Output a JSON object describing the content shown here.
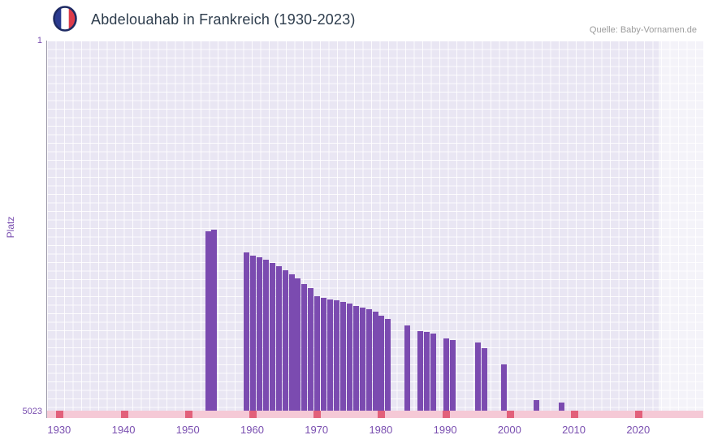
{
  "header": {
    "title": "Abdelouahab in Frankreich (1930-2023)",
    "source": "Quelle: Baby-Vornamen.de",
    "flag_colors": [
      "#2a3a90",
      "#ffffff",
      "#dd3b4a"
    ],
    "flag_ring_color": "#1e2a63"
  },
  "chart_data": {
    "type": "bar",
    "title": "Abdelouahab in Frankreich (1930-2023)",
    "xlabel": "",
    "ylabel": "Platz",
    "y_axis": {
      "top_label": "1",
      "bottom_label": "5023",
      "min": 1,
      "max": 5023,
      "inverted": true
    },
    "x_ticks": [
      1930,
      1940,
      1950,
      1960,
      1970,
      1980,
      1990,
      2000,
      2010,
      2020
    ],
    "x_range": [
      1928,
      2030
    ],
    "grid": true,
    "legend": "none",
    "colors": {
      "accent": "#7a4fb0",
      "bar": "#7b4bb0",
      "plot_bg": "#e9e6f3",
      "strip": "#f5c9d6",
      "mark": "#e2607a"
    },
    "points": [
      {
        "year": 1953,
        "rank": 2590
      },
      {
        "year": 1954,
        "rank": 2565
      },
      {
        "year": 1959,
        "rank": 2870
      },
      {
        "year": 1960,
        "rank": 2920
      },
      {
        "year": 1961,
        "rank": 2945
      },
      {
        "year": 1962,
        "rank": 2975
      },
      {
        "year": 1963,
        "rank": 3020
      },
      {
        "year": 1964,
        "rank": 3060
      },
      {
        "year": 1965,
        "rank": 3120
      },
      {
        "year": 1966,
        "rank": 3170
      },
      {
        "year": 1967,
        "rank": 3230
      },
      {
        "year": 1968,
        "rank": 3300
      },
      {
        "year": 1969,
        "rank": 3365
      },
      {
        "year": 1970,
        "rank": 3470
      },
      {
        "year": 1971,
        "rank": 3495
      },
      {
        "year": 1972,
        "rank": 3515
      },
      {
        "year": 1973,
        "rank": 3530
      },
      {
        "year": 1974,
        "rank": 3550
      },
      {
        "year": 1975,
        "rank": 3570
      },
      {
        "year": 1976,
        "rank": 3600
      },
      {
        "year": 1977,
        "rank": 3625
      },
      {
        "year": 1978,
        "rank": 3650
      },
      {
        "year": 1979,
        "rank": 3680
      },
      {
        "year": 1980,
        "rank": 3735
      },
      {
        "year": 1981,
        "rank": 3780
      },
      {
        "year": 1984,
        "rank": 3865
      },
      {
        "year": 1986,
        "rank": 3940
      },
      {
        "year": 1987,
        "rank": 3955
      },
      {
        "year": 1988,
        "rank": 3975
      },
      {
        "year": 1990,
        "rank": 4040
      },
      {
        "year": 1991,
        "rank": 4060
      },
      {
        "year": 1995,
        "rank": 4095
      },
      {
        "year": 1996,
        "rank": 4180
      },
      {
        "year": 1999,
        "rank": 4400
      },
      {
        "year": 2004,
        "rank": 4880
      },
      {
        "year": 2008,
        "rank": 4915
      }
    ]
  }
}
